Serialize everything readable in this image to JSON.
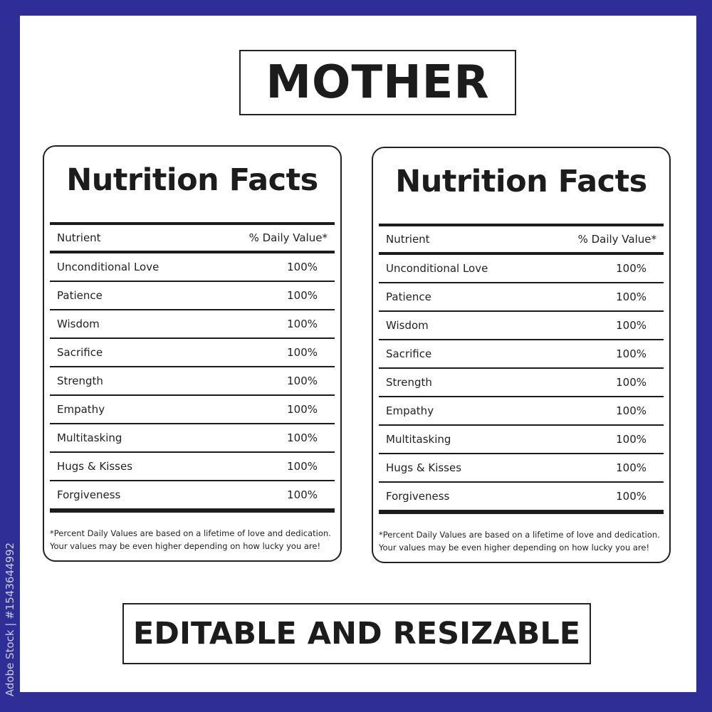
{
  "title": "MOTHER",
  "footer_banner": "EDITABLE AND RESIZABLE",
  "watermark_id": "Adobe Stock | #1543644992",
  "colors": {
    "border": "#2e2e96",
    "text": "#1c1c1c"
  },
  "label": {
    "heading": "Nutrition Facts",
    "col_nutrient": "Nutrient",
    "col_value": "% Daily Value*",
    "rows": [
      {
        "name": "Unconditional Love",
        "value": "100%"
      },
      {
        "name": "Patience",
        "value": "100%"
      },
      {
        "name": "Wisdom",
        "value": "100%"
      },
      {
        "name": "Sacrifice",
        "value": "100%"
      },
      {
        "name": "Strength",
        "value": "100%"
      },
      {
        "name": "Empathy",
        "value": "100%"
      },
      {
        "name": "Multitasking",
        "value": "100%"
      },
      {
        "name": "Hugs & Kisses",
        "value": "100%"
      },
      {
        "name": "Forgiveness",
        "value": "100%"
      }
    ],
    "footnote_1": "*Percent Daily Values are based on a lifetime of love and dedication.",
    "footnote_2": "Your values may be even higher depending on how lucky you are!"
  }
}
